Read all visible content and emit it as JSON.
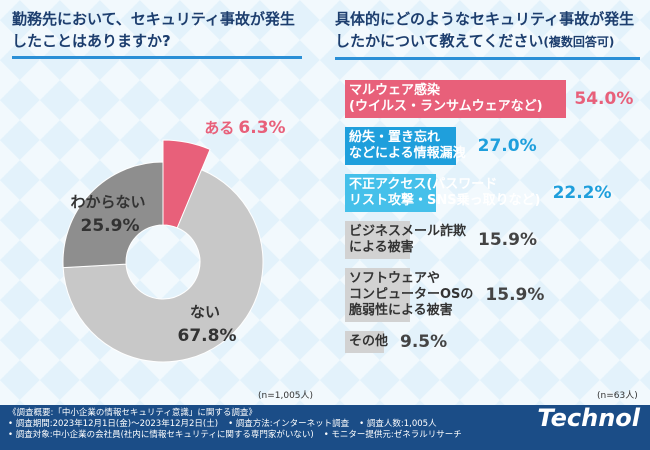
{
  "chart_data": [
    {
      "type": "pie",
      "title": "勤務先において、セキュリティ事故が発生したことはありますか?",
      "categories": [
        "ある",
        "ない",
        "わからない"
      ],
      "values": [
        6.3,
        67.8,
        25.9
      ],
      "value_labels": [
        "6.3%",
        "67.8%",
        "25.9%"
      ],
      "colors": [
        "#e8607a",
        "#c8c8c8",
        "#8e8e8e"
      ],
      "note": "(n=1,005人)"
    },
    {
      "type": "bar",
      "title": "具体的にどのようなセキュリティ事故が発生したかについて教えてください",
      "subtitle": "(複数回答可)",
      "categories": [
        "マルウェア感染\n(ウイルス・ランサムウェアなど)",
        "紛失・置き忘れ\nなどによる情報漏洩",
        "不正アクセス(パスワード\nリスト攻撃・SNS乗っ取りなど)",
        "ビジネスメール詐欺\nによる被害",
        "ソフトウェアや\nコンピューターOSの\n脆弱性による被害",
        "その他"
      ],
      "values": [
        54.0,
        27.0,
        22.2,
        15.9,
        15.9,
        9.5
      ],
      "value_labels": [
        "54.0%",
        "27.0%",
        "22.2%",
        "15.9%",
        "15.9%",
        "9.5%"
      ],
      "colors": [
        "#e8607a",
        "#1f9fdc",
        "#45c0ea",
        "#d2d2d2",
        "#d2d2d2",
        "#d2d2d2"
      ],
      "label_colors": [
        "#ffffff",
        "#ffffff",
        "#ffffff",
        "#333333",
        "#333333",
        "#333333"
      ],
      "value_label_colors": [
        "#e8607a",
        "#1f9fdc",
        "#1f9fdc",
        "#444444",
        "#444444",
        "#444444"
      ],
      "note": "(n=63人)"
    }
  ],
  "footer": {
    "heading": "《調査概要:「中小企業の情報セキュリティ意識」に関する調査》",
    "items": [
      "• 調査期間:2023年12月1日(金)〜2023年12月2日(土)",
      "• 調査方法:インターネット調査",
      "• 調査人数:1,005人",
      "• 調査対象:中小企業の会社員(社内に情報セキュリティに関する専門家がいない)",
      "• モニター提供元:ゼネラルリサーチ"
    ],
    "logo": "Technol"
  }
}
